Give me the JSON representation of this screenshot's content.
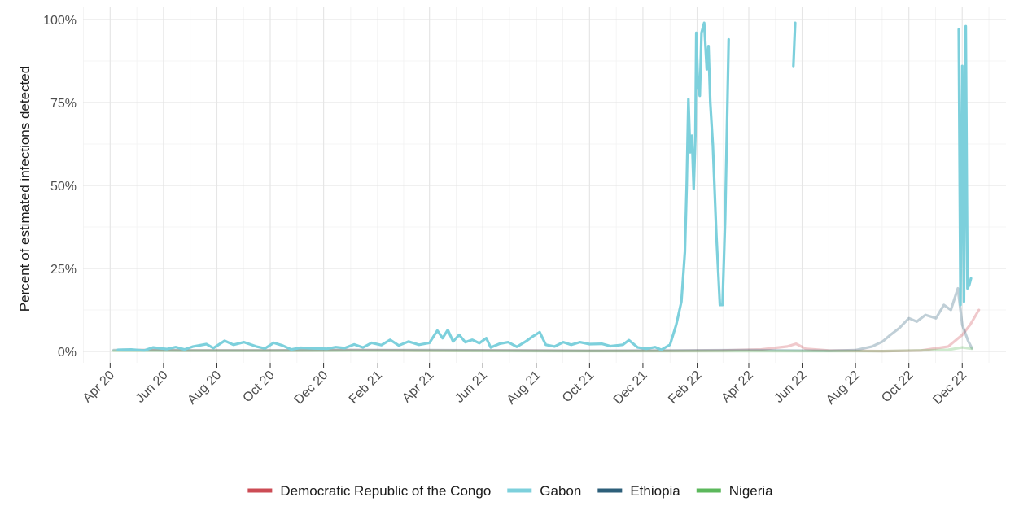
{
  "chart_data": {
    "type": "line",
    "xlabel": "",
    "ylabel": "Percent of estimated infections detected",
    "x_range": [
      "2020-03-01",
      "2023-01-20"
    ],
    "ylim": [
      0,
      100
    ],
    "y_ticks": [
      0,
      25,
      50,
      75,
      100
    ],
    "y_tick_labels": [
      "0%",
      "25%",
      "50%",
      "75%",
      "100%"
    ],
    "x_ticks": [
      "2020-04-01",
      "2020-06-01",
      "2020-08-01",
      "2020-10-01",
      "2020-12-01",
      "2021-02-01",
      "2021-04-01",
      "2021-06-01",
      "2021-08-01",
      "2021-10-01",
      "2021-12-01",
      "2022-02-01",
      "2022-04-01",
      "2022-06-01",
      "2022-08-01",
      "2022-10-01",
      "2022-12-01"
    ],
    "x_tick_labels": [
      "Apr 20",
      "Jun 20",
      "Aug 20",
      "Oct 20",
      "Dec 20",
      "Feb 21",
      "Apr 21",
      "Jun 21",
      "Aug 21",
      "Oct 21",
      "Dec 21",
      "Feb 22",
      "Apr 22",
      "Jun 22",
      "Aug 22",
      "Oct 22",
      "Dec 22"
    ],
    "grid": true,
    "legend_position": "bottom",
    "series": [
      {
        "name": "Democratic Republic of the Congo",
        "color": "#cc4c55",
        "opacity": 0.3,
        "segments": [
          [
            {
              "x": "2020-04-15",
              "y": 0.5
            },
            {
              "x": "2020-07-01",
              "y": 0.3
            },
            {
              "x": "2020-10-01",
              "y": 0.3
            },
            {
              "x": "2021-01-01",
              "y": 0.4
            },
            {
              "x": "2021-04-01",
              "y": 0.3
            },
            {
              "x": "2021-07-01",
              "y": 0.3
            },
            {
              "x": "2021-10-01",
              "y": 0.2
            },
            {
              "x": "2022-01-01",
              "y": 0.2
            },
            {
              "x": "2022-03-01",
              "y": 0.3
            },
            {
              "x": "2022-04-15",
              "y": 0.6
            },
            {
              "x": "2022-05-15",
              "y": 1.5
            },
            {
              "x": "2022-05-25",
              "y": 2.3
            },
            {
              "x": "2022-06-05",
              "y": 0.8
            },
            {
              "x": "2022-07-01",
              "y": 0.3
            },
            {
              "x": "2022-09-01",
              "y": 0.1
            },
            {
              "x": "2022-10-15",
              "y": 0.3
            },
            {
              "x": "2022-11-15",
              "y": 1.5
            },
            {
              "x": "2022-12-01",
              "y": 5
            },
            {
              "x": "2022-12-10",
              "y": 8
            },
            {
              "x": "2022-12-20",
              "y": 12.5
            }
          ]
        ]
      },
      {
        "name": "Gabon",
        "color": "#7dd0dc",
        "opacity": 1,
        "segments": [
          [
            {
              "x": "2020-04-10",
              "y": 0.5
            },
            {
              "x": "2020-04-25",
              "y": 0.6
            },
            {
              "x": "2020-05-10",
              "y": 0.3
            },
            {
              "x": "2020-05-20",
              "y": 1.2
            },
            {
              "x": "2020-06-05",
              "y": 0.7
            },
            {
              "x": "2020-06-15",
              "y": 1.3
            },
            {
              "x": "2020-06-25",
              "y": 0.6
            },
            {
              "x": "2020-07-05",
              "y": 1.5
            },
            {
              "x": "2020-07-20",
              "y": 2.2
            },
            {
              "x": "2020-07-28",
              "y": 1.0
            },
            {
              "x": "2020-08-10",
              "y": 3.2
            },
            {
              "x": "2020-08-20",
              "y": 2.0
            },
            {
              "x": "2020-09-01",
              "y": 2.8
            },
            {
              "x": "2020-09-15",
              "y": 1.5
            },
            {
              "x": "2020-09-25",
              "y": 0.9
            },
            {
              "x": "2020-10-05",
              "y": 2.6
            },
            {
              "x": "2020-10-15",
              "y": 1.8
            },
            {
              "x": "2020-10-25",
              "y": 0.6
            },
            {
              "x": "2020-11-05",
              "y": 1.1
            },
            {
              "x": "2020-11-20",
              "y": 0.9
            },
            {
              "x": "2020-12-05",
              "y": 0.8
            },
            {
              "x": "2020-12-15",
              "y": 1.3
            },
            {
              "x": "2020-12-25",
              "y": 1.0
            },
            {
              "x": "2021-01-05",
              "y": 2.1
            },
            {
              "x": "2021-01-15",
              "y": 1.2
            },
            {
              "x": "2021-01-25",
              "y": 2.6
            },
            {
              "x": "2021-02-05",
              "y": 1.9
            },
            {
              "x": "2021-02-15",
              "y": 3.5
            },
            {
              "x": "2021-02-25",
              "y": 1.8
            },
            {
              "x": "2021-03-08",
              "y": 3.0
            },
            {
              "x": "2021-03-20",
              "y": 2.0
            },
            {
              "x": "2021-04-01",
              "y": 2.6
            },
            {
              "x": "2021-04-10",
              "y": 6.3
            },
            {
              "x": "2021-04-16",
              "y": 4.0
            },
            {
              "x": "2021-04-22",
              "y": 6.5
            },
            {
              "x": "2021-04-28",
              "y": 3.0
            },
            {
              "x": "2021-05-05",
              "y": 5.0
            },
            {
              "x": "2021-05-12",
              "y": 2.8
            },
            {
              "x": "2021-05-20",
              "y": 3.5
            },
            {
              "x": "2021-05-28",
              "y": 2.5
            },
            {
              "x": "2021-06-05",
              "y": 4.0
            },
            {
              "x": "2021-06-10",
              "y": 1.2
            },
            {
              "x": "2021-06-20",
              "y": 2.3
            },
            {
              "x": "2021-06-30",
              "y": 2.8
            },
            {
              "x": "2021-07-10",
              "y": 1.4
            },
            {
              "x": "2021-07-20",
              "y": 3.0
            },
            {
              "x": "2021-07-28",
              "y": 4.5
            },
            {
              "x": "2021-08-05",
              "y": 5.8
            },
            {
              "x": "2021-08-12",
              "y": 2.0
            },
            {
              "x": "2021-08-22",
              "y": 1.5
            },
            {
              "x": "2021-09-01",
              "y": 2.8
            },
            {
              "x": "2021-09-10",
              "y": 2.0
            },
            {
              "x": "2021-09-20",
              "y": 2.8
            },
            {
              "x": "2021-10-01",
              "y": 2.2
            },
            {
              "x": "2021-10-15",
              "y": 2.3
            },
            {
              "x": "2021-10-25",
              "y": 1.6
            },
            {
              "x": "2021-11-08",
              "y": 2.0
            },
            {
              "x": "2021-11-15",
              "y": 3.4
            },
            {
              "x": "2021-11-25",
              "y": 1.2
            },
            {
              "x": "2021-12-05",
              "y": 0.8
            },
            {
              "x": "2021-12-15",
              "y": 1.3
            },
            {
              "x": "2021-12-22",
              "y": 0.5
            },
            {
              "x": "2022-01-01",
              "y": 2.0
            },
            {
              "x": "2022-01-08",
              "y": 8
            },
            {
              "x": "2022-01-14",
              "y": 15
            },
            {
              "x": "2022-01-18",
              "y": 30
            },
            {
              "x": "2022-01-20",
              "y": 50
            },
            {
              "x": "2022-01-22",
              "y": 76
            },
            {
              "x": "2022-01-24",
              "y": 60
            },
            {
              "x": "2022-01-26",
              "y": 65
            },
            {
              "x": "2022-01-28",
              "y": 49
            },
            {
              "x": "2022-01-30",
              "y": 65
            },
            {
              "x": "2022-01-31",
              "y": 96
            },
            {
              "x": "2022-02-02",
              "y": 80
            },
            {
              "x": "2022-02-04",
              "y": 77
            },
            {
              "x": "2022-02-06",
              "y": 96
            },
            {
              "x": "2022-02-09",
              "y": 99
            },
            {
              "x": "2022-02-12",
              "y": 85
            },
            {
              "x": "2022-02-14",
              "y": 92
            },
            {
              "x": "2022-02-16",
              "y": 75
            },
            {
              "x": "2022-02-19",
              "y": 62
            },
            {
              "x": "2022-02-23",
              "y": 35
            },
            {
              "x": "2022-02-27",
              "y": 14
            },
            {
              "x": "2022-03-02",
              "y": 14
            },
            {
              "x": "2022-03-05",
              "y": 40
            },
            {
              "x": "2022-03-09",
              "y": 94
            }
          ],
          [
            {
              "x": "2022-05-22",
              "y": 86
            },
            {
              "x": "2022-05-24",
              "y": 99
            }
          ],
          [
            {
              "x": "2022-11-27",
              "y": 97
            },
            {
              "x": "2022-11-29",
              "y": 14
            },
            {
              "x": "2022-12-01",
              "y": 86
            },
            {
              "x": "2022-12-03",
              "y": 15
            },
            {
              "x": "2022-12-05",
              "y": 98
            },
            {
              "x": "2022-12-07",
              "y": 19
            },
            {
              "x": "2022-12-09",
              "y": 20
            },
            {
              "x": "2022-12-11",
              "y": 22
            }
          ]
        ]
      },
      {
        "name": "Ethiopia",
        "color": "#2d5f7a",
        "opacity": 0.3,
        "segments": [
          [
            {
              "x": "2020-04-05",
              "y": 0.4
            },
            {
              "x": "2020-07-01",
              "y": 0.3
            },
            {
              "x": "2020-10-01",
              "y": 0.3
            },
            {
              "x": "2021-01-01",
              "y": 0.4
            },
            {
              "x": "2021-04-01",
              "y": 0.4
            },
            {
              "x": "2021-07-01",
              "y": 0.3
            },
            {
              "x": "2021-10-01",
              "y": 0.2
            },
            {
              "x": "2022-01-01",
              "y": 0.3
            },
            {
              "x": "2022-04-01",
              "y": 0.4
            },
            {
              "x": "2022-07-01",
              "y": 0.2
            },
            {
              "x": "2022-08-01",
              "y": 0.4
            },
            {
              "x": "2022-08-20",
              "y": 1.5
            },
            {
              "x": "2022-09-01",
              "y": 3.0
            },
            {
              "x": "2022-09-10",
              "y": 5.0
            },
            {
              "x": "2022-09-20",
              "y": 7.0
            },
            {
              "x": "2022-10-01",
              "y": 10.0
            },
            {
              "x": "2022-10-10",
              "y": 9.0
            },
            {
              "x": "2022-10-20",
              "y": 11.0
            },
            {
              "x": "2022-11-01",
              "y": 10.0
            },
            {
              "x": "2022-11-10",
              "y": 14.0
            },
            {
              "x": "2022-11-18",
              "y": 12.5
            },
            {
              "x": "2022-11-26",
              "y": 19.0
            },
            {
              "x": "2022-12-01",
              "y": 8.0
            },
            {
              "x": "2022-12-08",
              "y": 3.0
            },
            {
              "x": "2022-12-12",
              "y": 1.0
            }
          ]
        ]
      },
      {
        "name": "Nigeria",
        "color": "#5cb85c",
        "opacity": 0.3,
        "segments": [
          [
            {
              "x": "2020-04-05",
              "y": 0.2
            },
            {
              "x": "2020-09-01",
              "y": 0.2
            },
            {
              "x": "2021-03-01",
              "y": 0.2
            },
            {
              "x": "2021-09-01",
              "y": 0.1
            },
            {
              "x": "2022-03-01",
              "y": 0.1
            },
            {
              "x": "2022-09-01",
              "y": 0.1
            },
            {
              "x": "2022-11-15",
              "y": 0.5
            },
            {
              "x": "2022-12-01",
              "y": 1.2
            },
            {
              "x": "2022-12-12",
              "y": 0.8
            }
          ]
        ]
      }
    ]
  }
}
